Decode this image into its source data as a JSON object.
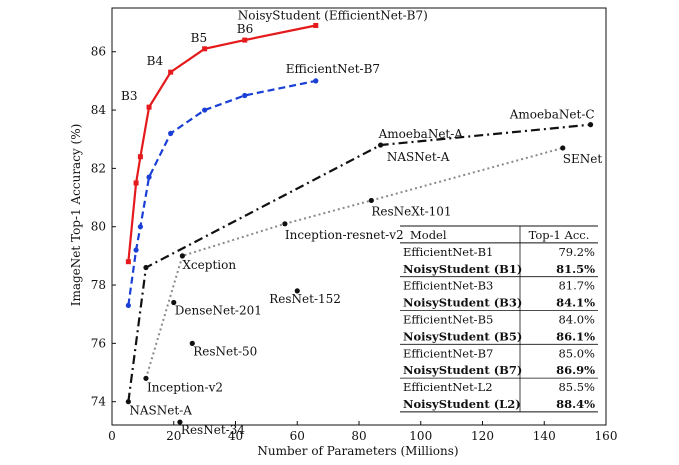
{
  "chart_data": {
    "type": "line",
    "xlabel": "Number of Parameters (Millions)",
    "ylabel": "ImageNet Top-1 Accuracy (%)",
    "xlim": [
      0,
      160
    ],
    "ylim": [
      73.2,
      87.5
    ],
    "xticks": [
      0,
      20,
      40,
      60,
      80,
      100,
      120,
      140,
      160
    ],
    "yticks": [
      74,
      76,
      78,
      80,
      82,
      84,
      86
    ],
    "grid": false,
    "series": [
      {
        "name": "NoisyStudent (EfficientNet-B7)",
        "color": "#e41a1c",
        "style": "solid",
        "marker": "square",
        "points": [
          [
            5.3,
            78.8
          ],
          [
            7.8,
            81.5
          ],
          [
            9.2,
            82.4
          ],
          [
            12,
            84.1
          ],
          [
            19,
            85.3
          ],
          [
            30,
            86.1
          ],
          [
            43,
            86.4
          ],
          [
            66,
            86.9
          ]
        ]
      },
      {
        "name": "EfficientNet-B7",
        "color": "#1a3fd6",
        "style": "dashed",
        "marker": "circle",
        "points": [
          [
            5.3,
            77.3
          ],
          [
            7.8,
            79.2
          ],
          [
            9.2,
            80.0
          ],
          [
            12,
            81.7
          ],
          [
            19,
            83.2
          ],
          [
            30,
            84.0
          ],
          [
            43,
            84.5
          ],
          [
            66,
            85.0
          ]
        ]
      },
      {
        "name": "NASNet / AmoebaNet",
        "color": "#111111",
        "style": "dashdot",
        "marker": "circle",
        "points": [
          [
            5.3,
            74.0
          ],
          [
            11,
            78.6
          ],
          [
            87,
            82.8
          ],
          [
            155,
            83.5
          ]
        ]
      },
      {
        "name": "Inception / ResNeXt / SENet",
        "color": "#8a8a8a",
        "style": "dotted",
        "marker": "circle",
        "points": [
          [
            11,
            74.8
          ],
          [
            22.8,
            79.0
          ],
          [
            56,
            80.1
          ],
          [
            84,
            80.9
          ],
          [
            146,
            82.7
          ]
        ]
      }
    ],
    "standalone_points": [
      {
        "label": "DenseNet-201",
        "x": 20,
        "y": 77.4
      },
      {
        "label": "ResNet-152",
        "x": 60,
        "y": 77.8
      },
      {
        "label": "ResNet-50",
        "x": 26,
        "y": 76.0
      },
      {
        "label": "ResNet-34",
        "x": 22,
        "y": 73.3
      }
    ],
    "annotations": [
      {
        "text": "NoisyStudent (EfficientNet-B7)",
        "x": 66,
        "y": 86.9
      },
      {
        "text": "EfficientNet-B7",
        "x": 66,
        "y": 85.0
      },
      {
        "text": "B6",
        "x": 43,
        "y": 86.4
      },
      {
        "text": "B5",
        "x": 30,
        "y": 86.1
      },
      {
        "text": "B4",
        "x": 19,
        "y": 85.3
      },
      {
        "text": "B3",
        "x": 12,
        "y": 84.1
      },
      {
        "text": "AmoebaNet-A",
        "x": 87,
        "y": 82.8
      },
      {
        "text": "NASNet-A",
        "x": 90,
        "y": 82.7
      },
      {
        "text": "AmoebaNet-C",
        "x": 155,
        "y": 83.5
      },
      {
        "text": "SENet",
        "x": 146,
        "y": 82.7
      },
      {
        "text": "ResNeXt-101",
        "x": 84,
        "y": 80.9
      },
      {
        "text": "Inception-resnet-v2",
        "x": 56,
        "y": 80.1
      },
      {
        "text": "Xception",
        "x": 22.8,
        "y": 79.0
      },
      {
        "text": "DenseNet-201",
        "x": 20,
        "y": 77.4
      },
      {
        "text": "ResNet-152",
        "x": 60,
        "y": 77.8
      },
      {
        "text": "ResNet-50",
        "x": 26,
        "y": 76.0
      },
      {
        "text": "Inception-v2",
        "x": 11,
        "y": 74.8
      },
      {
        "text": "NASNet-A",
        "x": 5.3,
        "y": 74.0
      },
      {
        "text": "ResNet-34",
        "x": 22,
        "y": 73.3
      }
    ],
    "table": {
      "header": [
        "Model",
        "Top-1 Acc."
      ],
      "rows": [
        {
          "model": "EfficientNet-B1",
          "acc": "79.2%",
          "bold": false
        },
        {
          "model": "NoisyStudent (B1)",
          "acc": "81.5%",
          "bold": true
        },
        {
          "model": "EfficientNet-B3",
          "acc": "81.7%",
          "bold": false
        },
        {
          "model": "NoisyStudent (B3)",
          "acc": "84.1%",
          "bold": true
        },
        {
          "model": "EfficientNet-B5",
          "acc": "84.0%",
          "bold": false
        },
        {
          "model": "NoisyStudent (B5)",
          "acc": "86.1%",
          "bold": true
        },
        {
          "model": "EfficientNet-B7",
          "acc": "85.0%",
          "bold": false
        },
        {
          "model": "NoisyStudent (B7)",
          "acc": "86.9%",
          "bold": true
        },
        {
          "model": "EfficientNet-L2",
          "acc": "85.5%",
          "bold": false
        },
        {
          "model": "NoisyStudent (L2)",
          "acc": "88.4%",
          "bold": true
        }
      ]
    }
  }
}
